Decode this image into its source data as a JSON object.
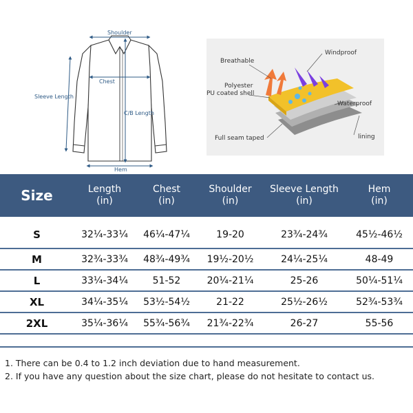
{
  "shirt_diagram": {
    "labels": {
      "shoulder": "Shoulder",
      "chest": "Chest",
      "sleeve_length": "Sleeve Length",
      "cb_length": "C/B Length",
      "hem": "Hem"
    }
  },
  "fabric_diagram": {
    "labels": {
      "breathable": "Breathable",
      "windproof": "Windproof",
      "polyester_line1": "Polyester",
      "polyester_line2": "PU coated shell",
      "waterproof": "Waterproof",
      "full_seam": "Full seam taped",
      "lining": "lining"
    },
    "colors": {
      "breathable_arrows": "#f07a3a",
      "wind_arrows": "#7a3fe0",
      "shell_layer": "#f2c12a",
      "water_drops": "#5db7e8"
    }
  },
  "table": {
    "header_color": "#3d5a80",
    "columns": [
      {
        "line1": "Size",
        "line2": ""
      },
      {
        "line1": "Length",
        "line2": "(in)"
      },
      {
        "line1": "Chest",
        "line2": "(in)"
      },
      {
        "line1": "Shoulder",
        "line2": "(in)"
      },
      {
        "line1": "Sleeve Length",
        "line2": "(in)"
      },
      {
        "line1": "Hem",
        "line2": "(in)"
      }
    ],
    "rows": [
      [
        "S",
        "32¼-33¼",
        "46¼-47¼",
        "19-20",
        "23¾-24¾",
        "45½-46½"
      ],
      [
        "M",
        "32¾-33¾",
        "48¾-49¾",
        "19½-20½",
        "24¼-25¼",
        "48-49"
      ],
      [
        "L",
        "33¼-34¼",
        "51-52",
        "20¼-21¼",
        "25-26",
        "50¼-51¼"
      ],
      [
        "XL",
        "34¼-35¼",
        "53½-54½",
        "21-22",
        "25½-26½",
        "52¾-53¾"
      ],
      [
        "2XL",
        "35¼-36¼",
        "55¾-56¾",
        "21¾-22¾",
        "26-27",
        "55-56"
      ]
    ]
  },
  "notes": [
    "1. There can be 0.4 to 1.2 inch deviation due to hand measurement.",
    "2. If you have any question about the size chart, please do not hesitate to contact us."
  ]
}
